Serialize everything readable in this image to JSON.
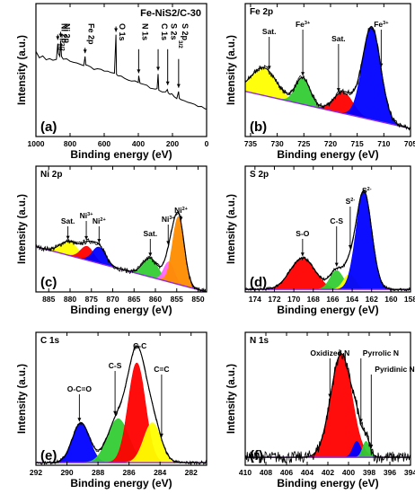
{
  "chart_data": [
    {
      "type": "line",
      "panel_label": "(a)",
      "title": "Fe-NiS2/C-30",
      "xlabel": "Binding energy (eV)",
      "ylabel": "Intensity (a.u.)",
      "xlim": [
        1000,
        0
      ],
      "ylim": [
        0,
        1
      ],
      "xticks": [
        1000,
        800,
        600,
        400,
        200,
        0
      ],
      "series": [
        {
          "x": [
            1000,
            980,
            960,
            940,
            920,
            900,
            880,
            872,
            868,
            860,
            855,
            850,
            840,
            820,
            800,
            780,
            760,
            740,
            720,
            712,
            708,
            700,
            680,
            660,
            640,
            620,
            600,
            580,
            560,
            540,
            531,
            528,
            520,
            500,
            480,
            460,
            440,
            420,
            400,
            398,
            390,
            370,
            350,
            330,
            300,
            290,
            284,
            280,
            260,
            240,
            230,
            225,
            215,
            205,
            200,
            190,
            175,
            164,
            160,
            150,
            130,
            110,
            90,
            70,
            50,
            30,
            10,
            0
          ],
          "y": [
            0.64,
            0.6,
            0.6,
            0.58,
            0.59,
            0.57,
            0.58,
            0.7,
            0.62,
            0.6,
            0.72,
            0.6,
            0.58,
            0.58,
            0.57,
            0.56,
            0.55,
            0.54,
            0.54,
            0.6,
            0.54,
            0.53,
            0.52,
            0.51,
            0.51,
            0.5,
            0.49,
            0.49,
            0.48,
            0.47,
            0.76,
            0.47,
            0.46,
            0.45,
            0.44,
            0.43,
            0.42,
            0.42,
            0.41,
            0.45,
            0.4,
            0.39,
            0.38,
            0.37,
            0.36,
            0.36,
            0.47,
            0.35,
            0.34,
            0.33,
            0.36,
            0.33,
            0.32,
            0.32,
            0.31,
            0.3,
            0.29,
            0.34,
            0.29,
            0.28,
            0.27,
            0.26,
            0.25,
            0.24,
            0.23,
            0.22,
            0.21,
            0.2
          ]
        }
      ],
      "annotations": [
        {
          "text": "Ni 2p",
          "sub": "1/2",
          "x": 872
        },
        {
          "text": "Ni 2p",
          "sub": "3/2",
          "x": 855
        },
        {
          "text": "Fe 2p",
          "x": 712
        },
        {
          "text": "O 1s",
          "x": 531
        },
        {
          "text": "N 1s",
          "x": 398
        },
        {
          "text": "C 1s",
          "x": 284
        },
        {
          "text": "S 2s",
          "x": 228
        },
        {
          "text": "S 2p",
          "sub": "3/2",
          "x": 164
        }
      ]
    },
    {
      "type": "area",
      "panel_label": "(b)",
      "title": "Fe 2p",
      "xlabel": "Binding energy (eV)",
      "ylabel": "Intensity (a.u.)",
      "xlim": [
        736,
        705
      ],
      "ylim": [
        0,
        1
      ],
      "xticks": [
        735,
        730,
        725,
        720,
        715,
        710,
        705
      ],
      "baseline": [
        [
          736,
          0.34
        ],
        [
          705,
          0.06
        ]
      ],
      "series": [
        {
          "name": "Sat.",
          "color": "#ffff00",
          "center": 732.5,
          "fwhm": 5.5,
          "height": 0.21
        },
        {
          "name": "Fe3+",
          "color": "#33cc33",
          "center": 725.2,
          "fwhm": 3.2,
          "height": 0.2
        },
        {
          "name": "Sat.",
          "color": "#ff0000",
          "center": 717.6,
          "fwhm": 4.2,
          "height": 0.16
        },
        {
          "name": "Fe3+",
          "color": "#0000ff",
          "center": 712.3,
          "fwhm": 4.0,
          "height": 0.7
        }
      ],
      "annotations": [
        {
          "text": "Sat.",
          "x": 731.5
        },
        {
          "text": "Fe",
          "sup": "3+",
          "x": 725.2
        },
        {
          "text": "Sat.",
          "x": 718.5
        },
        {
          "text": "Fe",
          "sup": "3+",
          "x": 710.5
        }
      ]
    },
    {
      "type": "area",
      "panel_label": "(c)",
      "title": "Ni 2p",
      "xlabel": "Binding energy (eV)",
      "ylabel": "Intensity (a.u.)",
      "xlim": [
        888,
        848
      ],
      "ylim": [
        0,
        1
      ],
      "xticks": [
        885,
        880,
        875,
        870,
        865,
        860,
        855,
        850
      ],
      "baseline": [
        [
          888,
          0.36
        ],
        [
          848,
          0.0
        ]
      ],
      "series": [
        {
          "name": "Sat.",
          "color": "#ffff00",
          "center": 880.2,
          "fwhm": 5.0,
          "height": 0.11
        },
        {
          "name": "Ni3+",
          "color": "#ff0000",
          "center": 876.0,
          "fwhm": 3.6,
          "height": 0.11
        },
        {
          "name": "Ni2+",
          "color": "#0000ff",
          "center": 873.2,
          "fwhm": 3.6,
          "height": 0.13
        },
        {
          "name": "Sat.",
          "color": "#33cc33",
          "center": 861.2,
          "fwhm": 4.2,
          "height": 0.15
        },
        {
          "name": "Ni3+",
          "color": "#ff66ff",
          "center": 856.8,
          "fwhm": 2.8,
          "height": 0.16
        },
        {
          "name": "Ni2+",
          "color": "#ff8c00",
          "center": 854.6,
          "fwhm": 3.2,
          "height": 0.54
        }
      ],
      "annotations": [
        {
          "text": "Sat.",
          "x": 880.5
        },
        {
          "text": "Ni",
          "sup": "3+",
          "x": 876.2
        },
        {
          "text": "Ni",
          "sup": "2+",
          "x": 873.2
        },
        {
          "text": "Sat.",
          "x": 861.2
        },
        {
          "text": "Ni",
          "sup": "3+",
          "x": 857.0
        },
        {
          "text": "Ni",
          "sup": "2+",
          "x": 854.0
        }
      ]
    },
    {
      "type": "area",
      "panel_label": "(d)",
      "title": "S 2p",
      "xlabel": "Binding energy (eV)",
      "ylabel": "Intensity (a.u.)",
      "xlim": [
        175,
        158
      ],
      "ylim": [
        0,
        1
      ],
      "xticks": [
        174,
        172,
        170,
        168,
        166,
        164,
        162,
        160,
        158
      ],
      "baseline": [
        [
          175,
          0.02
        ],
        [
          158,
          0.02
        ]
      ],
      "series": [
        {
          "name": "S-O",
          "color": "#ff0000",
          "center": 169.1,
          "fwhm": 3.0,
          "height": 0.25
        },
        {
          "name": "C-S",
          "color": "#33cc33",
          "center": 165.6,
          "fwhm": 1.6,
          "height": 0.15
        },
        {
          "name": "S2-",
          "color": "#ffff00",
          "center": 164.3,
          "fwhm": 1.4,
          "height": 0.12
        },
        {
          "name": "S2-",
          "color": "#0000ff",
          "center": 162.8,
          "fwhm": 1.9,
          "height": 0.78
        }
      ],
      "annotations": [
        {
          "text": "S-O",
          "x": 169.1
        },
        {
          "text": "C-S",
          "x": 165.6
        },
        {
          "text": "S",
          "sup": "2-",
          "x": 164.2
        },
        {
          "text": "S",
          "sup": "2-",
          "x": 162.5
        }
      ]
    },
    {
      "type": "area",
      "panel_label": "(e)",
      "title": "C 1s",
      "xlabel": "Binding energy (eV)",
      "ylabel": "Intensity (a.u.)",
      "xlim": [
        292,
        281
      ],
      "ylim": [
        0,
        1
      ],
      "xticks": [
        292,
        290,
        288,
        286,
        284,
        282
      ],
      "baseline": [
        [
          292,
          0.02
        ],
        [
          281,
          0.02
        ]
      ],
      "series": [
        {
          "name": "O-C=O",
          "color": "#0000ff",
          "center": 289.1,
          "fwhm": 1.3,
          "height": 0.3
        },
        {
          "name": "C-S",
          "color": "#33cc33",
          "center": 286.7,
          "fwhm": 1.6,
          "height": 0.33
        },
        {
          "name": "C-C",
          "color": "#ff0000",
          "center": 285.5,
          "fwhm": 1.3,
          "height": 0.75
        },
        {
          "name": "C=C",
          "color": "#ffff00",
          "center": 284.5,
          "fwhm": 1.3,
          "height": 0.3
        }
      ],
      "annotations": [
        {
          "text": "O-C=O",
          "x": 289.2
        },
        {
          "text": "C-S",
          "x": 286.9
        },
        {
          "text": "C-C",
          "x": 285.3
        },
        {
          "text": "C=C",
          "x": 283.9
        }
      ]
    },
    {
      "type": "area",
      "panel_label": "(f)",
      "title": "N 1s",
      "xlabel": "Binding energy (eV)",
      "ylabel": "Intensity (a.u.)",
      "xlim": [
        410,
        394
      ],
      "ylim": [
        0,
        1
      ],
      "xticks": [
        410,
        408,
        406,
        404,
        402,
        400,
        398,
        396,
        394
      ],
      "baseline": [
        [
          410,
          0.06
        ],
        [
          394,
          0.06
        ]
      ],
      "series": [
        {
          "name": "Oxidized N",
          "color": "#ff0000",
          "center": 400.7,
          "fwhm": 2.4,
          "height": 0.78
        },
        {
          "name": "Pyrrolic N",
          "color": "#0000ff",
          "center": 399.2,
          "fwhm": 0.9,
          "height": 0.12
        },
        {
          "name": "Pyridinic N",
          "color": "#33cc33",
          "center": 398.3,
          "fwhm": 0.8,
          "height": 0.12
        }
      ],
      "annotations": [
        {
          "text": "Oxidized N",
          "x": 401.8
        },
        {
          "text": "Pyrrolic N",
          "x": 398.8
        },
        {
          "text": "Pyridinic N",
          "x": 397.8
        }
      ]
    }
  ]
}
